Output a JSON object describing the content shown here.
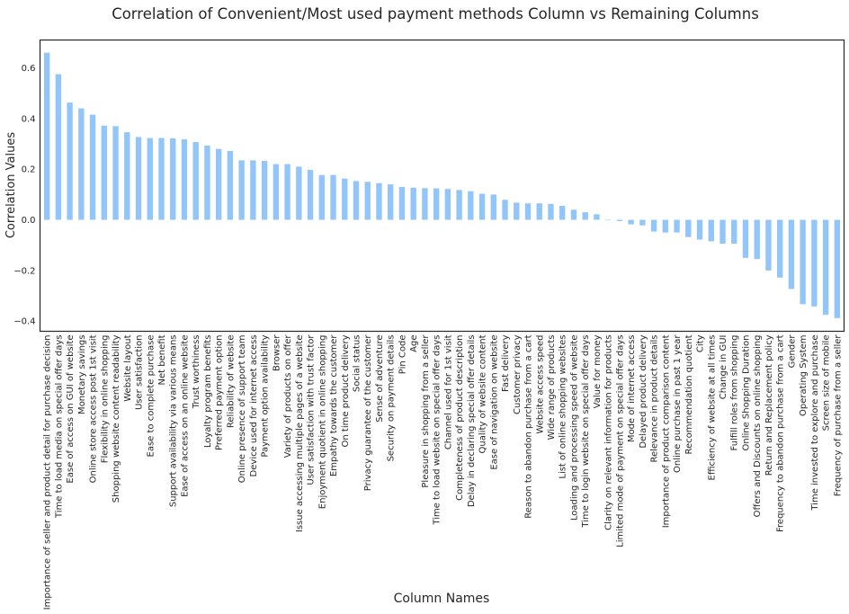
{
  "chart_data": {
    "type": "bar",
    "title": "Correlation of Convenient/Most used payment methods Column vs Remaining Columns",
    "xlabel": "Column Names",
    "ylabel": "Correlation Values",
    "ylim": [
      -0.44,
      0.71
    ],
    "yticks": [
      -0.4,
      -0.2,
      0.0,
      0.2,
      0.4,
      0.6
    ],
    "ytick_labels": [
      "−0.4",
      "−0.2",
      "0.0",
      "0.2",
      "0.4",
      "0.6"
    ],
    "grid": false,
    "bar_color": "#92c6fa",
    "categories": [
      "Importance of seller and product detail for purchase decision",
      "Time to load media on special offer days",
      "Ease of access on GUI of website",
      "Monetary savings",
      "Online store access post 1st visit",
      "Flexibility in online shopping",
      "Shopping website content readability",
      "Website layout",
      "User satisfaction",
      "Ease to complete purchase",
      "Net benefit",
      "Support availability via various means",
      "Ease of access on an online website",
      "Trust worthiness",
      "Loyalty program benefits",
      "Preferred payment option",
      "Reliability of website",
      "Online presence of support team",
      "Device used for internet access",
      "Payment option availability",
      "Browser",
      "Variety of products on offer",
      "Issue accessing multiple pages of a website",
      "User satisfaction with trust factor",
      "Enjoyment quotient in online shopping",
      "Empathy towards the customer",
      "On time product delivery",
      "Social status",
      "Privacy guarantee of the customer",
      "Sense of adventure",
      "Security on payment details",
      "Pin Code",
      "Age",
      "Pleasure in shopping from a seller",
      "Time to load website on special offer days",
      "Channel used for 1st visit",
      "Completeness of product description",
      "Delay in declaring special offer details",
      "Quality of website content",
      "Ease of navigation on website",
      "Fast delivery",
      "Customer privacy",
      "Reason to abandon purchase from a cart",
      "Website access speed",
      "Wide range of products",
      "List of online shopping websites",
      "Loading and processing speed of website",
      "Time to login website on special offer days",
      "Value for money",
      "Clarity on relevant information for products",
      "Limited mode of payment on special offer days",
      "Mode of internet access",
      "Delayed product delivery",
      "Relevance in product details",
      "Importance of product comparison content",
      "Online purchase in past 1 year",
      "Recommendation quotient",
      "City",
      "Efficiency of website at all times",
      "Change in GUI",
      "Fulfill roles from shopping",
      "Online Shopping Duration",
      "Offers and Discounts on online shopping",
      "Return and Replacement policy",
      "Frequency to abandon purchase from a cart",
      "Gender",
      "Operating System",
      "Time invested to explore and purchase",
      "Screen size of mobile",
      "Frequency of purchase from a seller"
    ],
    "values": [
      0.66,
      0.575,
      0.463,
      0.44,
      0.415,
      0.372,
      0.37,
      0.346,
      0.327,
      0.323,
      0.323,
      0.322,
      0.318,
      0.307,
      0.293,
      0.28,
      0.272,
      0.235,
      0.235,
      0.233,
      0.22,
      0.22,
      0.21,
      0.197,
      0.177,
      0.177,
      0.163,
      0.153,
      0.15,
      0.145,
      0.14,
      0.13,
      0.127,
      0.125,
      0.124,
      0.122,
      0.118,
      0.113,
      0.103,
      0.1,
      0.079,
      0.068,
      0.065,
      0.065,
      0.063,
      0.055,
      0.04,
      0.03,
      0.022,
      0.0,
      -0.005,
      -0.018,
      -0.022,
      -0.046,
      -0.05,
      -0.05,
      -0.068,
      -0.078,
      -0.085,
      -0.094,
      -0.094,
      -0.15,
      -0.155,
      -0.2,
      -0.228,
      -0.273,
      -0.333,
      -0.342,
      -0.375,
      -0.388
    ]
  }
}
